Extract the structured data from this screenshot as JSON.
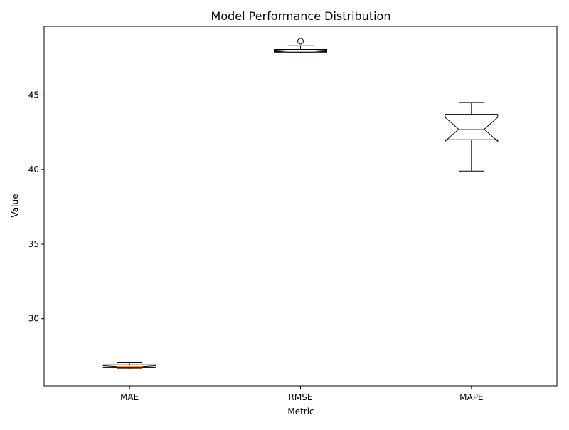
{
  "chart_data": {
    "type": "box",
    "title": "Model Performance Distribution",
    "xlabel": "Metric",
    "ylabel": "Value",
    "categories": [
      "MAE",
      "RMSE",
      "MAPE"
    ],
    "notched": true,
    "ylim": [
      25.5,
      49.6
    ],
    "yticks": [
      30,
      35,
      40,
      45
    ],
    "boxes": [
      {
        "name": "MAE",
        "whisker_low": 26.65,
        "q1": 26.72,
        "median": 26.8,
        "q3": 26.92,
        "whisker_high": 27.05,
        "notch_low": 26.74,
        "notch_high": 26.86,
        "outliers": []
      },
      {
        "name": "RMSE",
        "whisker_low": 47.82,
        "q1": 47.87,
        "median": 47.95,
        "q3": 48.05,
        "whisker_high": 48.3,
        "notch_low": 47.9,
        "notch_high": 48.0,
        "outliers": [
          48.6
        ]
      },
      {
        "name": "MAPE",
        "whisker_low": 39.9,
        "q1": 42.0,
        "median": 42.7,
        "q3": 43.7,
        "whisker_high": 44.5,
        "notch_low": 41.9,
        "notch_high": 43.5,
        "outliers": []
      }
    ],
    "colors": {
      "box": "#000000",
      "median": "#ff7f0e"
    },
    "grid": false,
    "legend": "none"
  }
}
